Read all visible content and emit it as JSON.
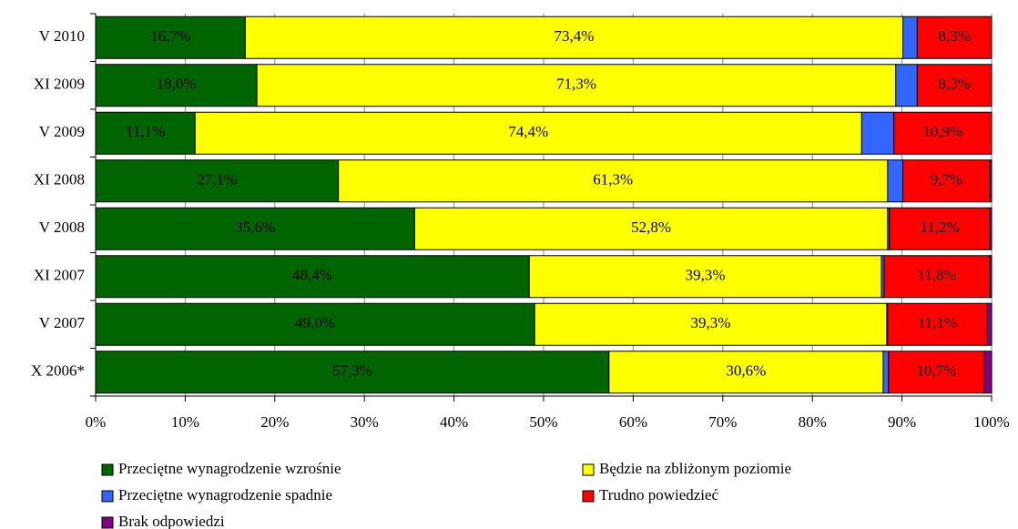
{
  "chart_data": {
    "type": "stacked-bar-horizontal",
    "categories": [
      "V 2010",
      "XI 2009",
      "V 2009",
      "XI 2008",
      "V 2008",
      "XI 2007",
      "V 2007",
      "X 2006*"
    ],
    "series": [
      {
        "name": "Przeciętne wynagrodzenie wzrośnie",
        "color": "#006400",
        "values": [
          16.7,
          18.0,
          11.1,
          27.1,
          35.6,
          48.4,
          49.0,
          57.3
        ],
        "value_labels": [
          "16,7%",
          "18,0%",
          "11,1%",
          "27,1%",
          "35,6%",
          "48,4%",
          "49,0%",
          "57,3%"
        ]
      },
      {
        "name": "Będzie na zbliżonym poziomie",
        "color": "#ffff00",
        "values": [
          73.4,
          71.3,
          74.4,
          61.3,
          52.8,
          39.3,
          39.3,
          30.6
        ],
        "value_labels": [
          "73,4%",
          "71,3%",
          "74,4%",
          "61,3%",
          "52,8%",
          "39,3%",
          "39,3%",
          "30,6%"
        ]
      },
      {
        "name": "Przeciętne wynagrodzenie spadnie",
        "color": "#3366ff",
        "values": [
          1.6,
          2.4,
          3.6,
          1.7,
          0.2,
          0.3,
          0.1,
          0.6
        ]
      },
      {
        "name": "Trudno powiedzieć",
        "color": "#ff0000",
        "values": [
          8.3,
          8.3,
          10.9,
          9.7,
          11.2,
          11.8,
          11.1,
          10.7
        ],
        "value_labels": [
          "8,3%",
          "8,3%",
          "10,9%",
          "9,7%",
          "11,2%",
          "11,8%",
          "11,1%",
          "10,7%"
        ]
      },
      {
        "name": "Brak odpowiedzi",
        "color": "#800080",
        "values": [
          0,
          0,
          0,
          0.2,
          0.2,
          0.2,
          0.5,
          0.8
        ]
      }
    ],
    "xlim": [
      0,
      100
    ],
    "xticks": [
      {
        "value": 0,
        "label": "0%"
      },
      {
        "value": 10,
        "label": "10%"
      },
      {
        "value": 20,
        "label": "20%"
      },
      {
        "value": 30,
        "label": "30%"
      },
      {
        "value": 40,
        "label": "40%"
      },
      {
        "value": 50,
        "label": "50%"
      },
      {
        "value": 60,
        "label": "60%"
      },
      {
        "value": 70,
        "label": "70%"
      },
      {
        "value": 80,
        "label": "80%"
      },
      {
        "value": 90,
        "label": "90%"
      },
      {
        "value": 100,
        "label": "100%"
      }
    ],
    "grid": true
  }
}
